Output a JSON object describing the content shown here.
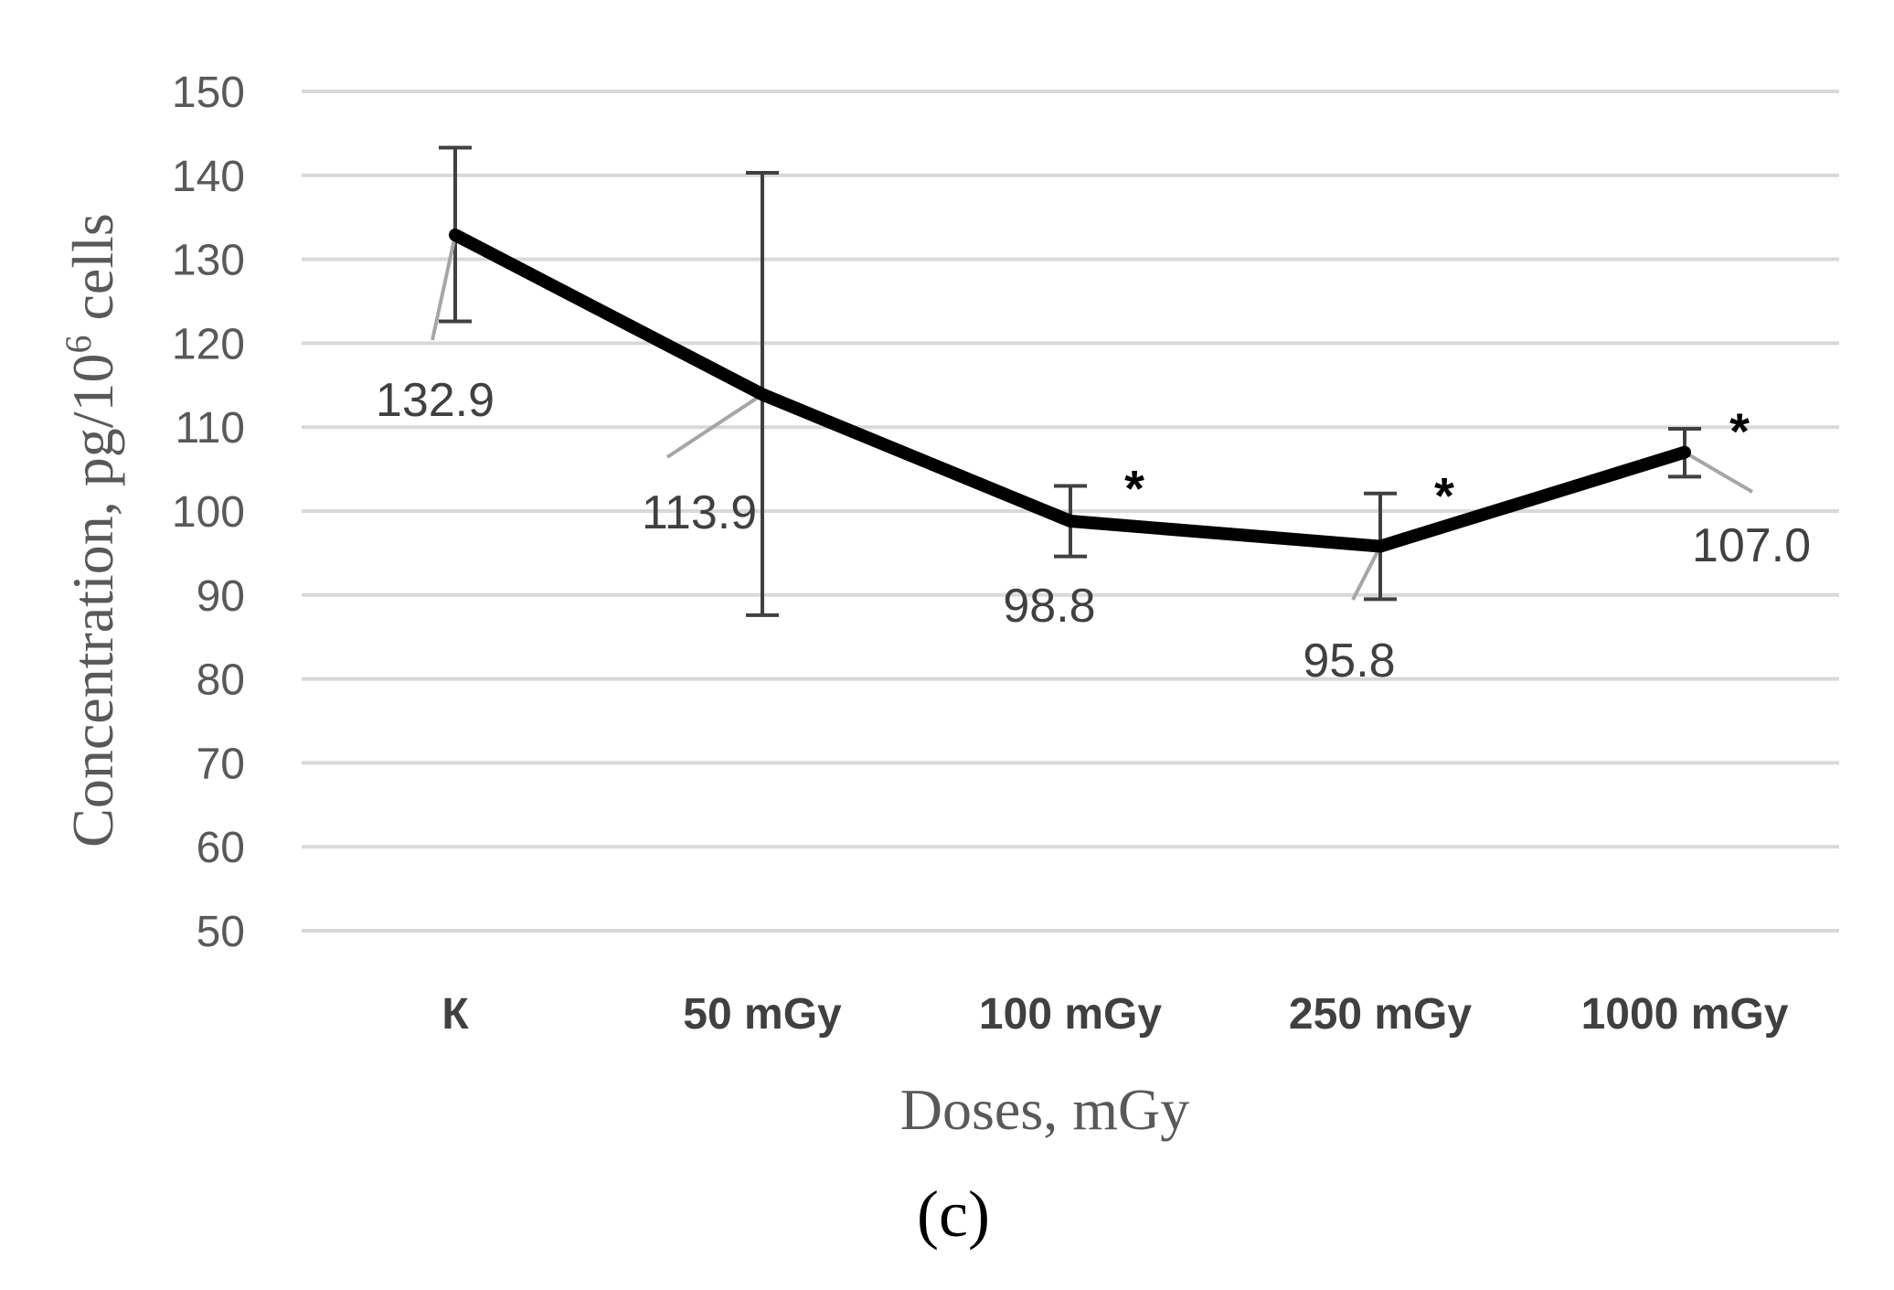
{
  "chart_data": {
    "type": "line",
    "title": "",
    "xlabel": "Doses, mGy",
    "ylabel_main": "Concentration, pg/10",
    "ylabel_sup": "6",
    "ylabel_tail": " cells",
    "ylim": [
      50,
      150
    ],
    "ytick_step": 10,
    "grid": true,
    "categories": [
      "К",
      "50 mGy",
      "100 mGy",
      "250 mGy",
      "1000 mGy"
    ],
    "series": [
      {
        "name": "Concentration",
        "values": [
          132.9,
          113.9,
          98.8,
          95.8,
          107.0
        ],
        "labels": [
          "132.9",
          "113.9",
          "98.8",
          "95.8",
          "107.0"
        ],
        "error_low": [
          122.6,
          87.6,
          94.6,
          89.5,
          104.1
        ],
        "error_high": [
          143.3,
          140.3,
          103.0,
          102.1,
          109.8
        ],
        "significant": [
          false,
          false,
          true,
          true,
          true
        ]
      }
    ],
    "significance_marker": "*",
    "panel_label": "(c)"
  }
}
